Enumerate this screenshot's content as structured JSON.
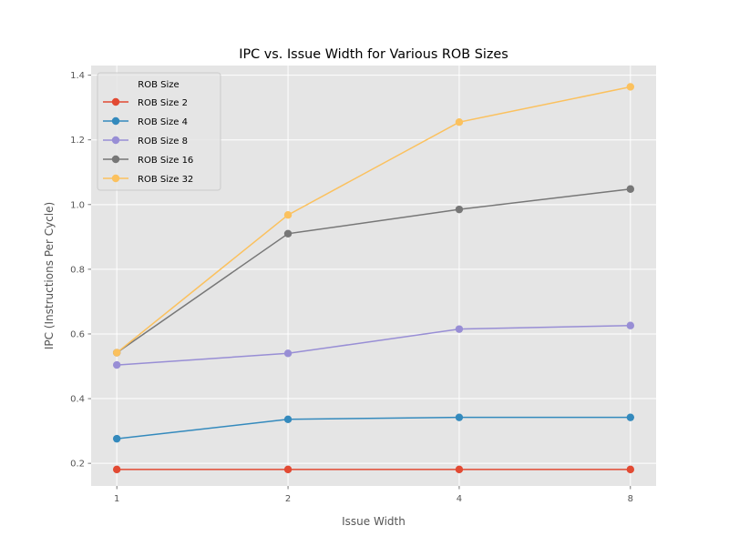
{
  "chart_data": {
    "type": "line",
    "title": "IPC vs. Issue Width for Various ROB Sizes",
    "xlabel": "Issue Width",
    "ylabel": "IPC (Instructions Per Cycle)",
    "x_scale": "log2",
    "x": [
      1,
      2,
      4,
      8
    ],
    "x_tick_labels": [
      "1",
      "2",
      "4",
      "8"
    ],
    "ylim": [
      0.13,
      1.43
    ],
    "y_ticks": [
      0.2,
      0.4,
      0.6,
      0.8,
      1.0,
      1.2,
      1.4
    ],
    "y_tick_labels": [
      "0.2",
      "0.4",
      "0.6",
      "0.8",
      "1.0",
      "1.2",
      "1.4"
    ],
    "grid": true,
    "background": "#e5e5e5",
    "legend": {
      "title": "ROB Size",
      "placement": "top-left"
    },
    "series": [
      {
        "name": "ROB Size 2",
        "color": "#e24a33",
        "values": [
          0.181,
          0.181,
          0.181,
          0.181
        ]
      },
      {
        "name": "ROB Size 4",
        "color": "#348abd",
        "values": [
          0.276,
          0.336,
          0.342,
          0.342
        ]
      },
      {
        "name": "ROB Size 8",
        "color": "#988ed5",
        "values": [
          0.504,
          0.54,
          0.615,
          0.626
        ]
      },
      {
        "name": "ROB Size 16",
        "color": "#777777",
        "values": [
          0.542,
          0.91,
          0.985,
          1.048
        ]
      },
      {
        "name": "ROB Size 32",
        "color": "#fbc15e",
        "values": [
          0.542,
          0.968,
          1.255,
          1.364
        ]
      }
    ]
  }
}
